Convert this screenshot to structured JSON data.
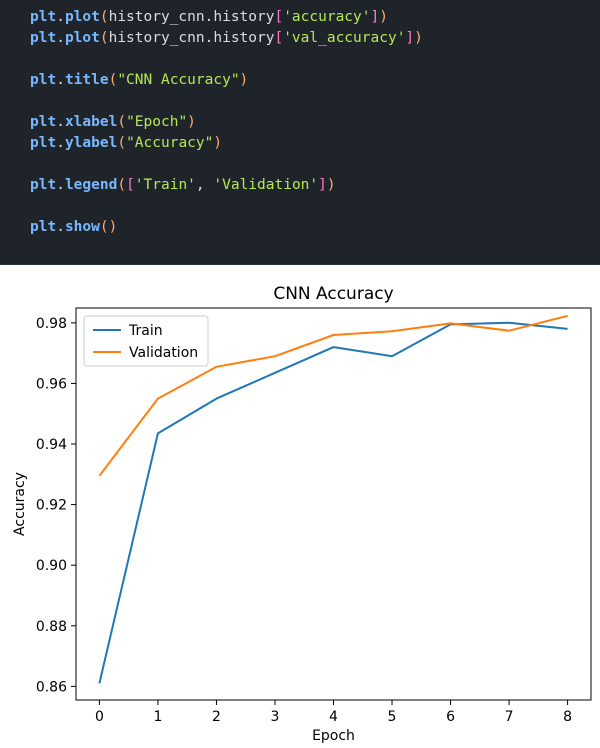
{
  "code_cell": {
    "lines": [
      [
        {
          "t": "obj",
          "v": "plt"
        },
        {
          "t": "dot",
          "v": "."
        },
        {
          "t": "fn",
          "v": "plot"
        },
        {
          "t": "paren",
          "v": "("
        },
        {
          "t": "attr",
          "v": "history_cnn"
        },
        {
          "t": "dot",
          "v": "."
        },
        {
          "t": "attr",
          "v": "history"
        },
        {
          "t": "bracket",
          "v": "["
        },
        {
          "t": "str",
          "v": "'accuracy'"
        },
        {
          "t": "bracket",
          "v": "]"
        },
        {
          "t": "paren",
          "v": ")"
        }
      ],
      [
        {
          "t": "obj",
          "v": "plt"
        },
        {
          "t": "dot",
          "v": "."
        },
        {
          "t": "fn",
          "v": "plot"
        },
        {
          "t": "paren",
          "v": "("
        },
        {
          "t": "attr",
          "v": "history_cnn"
        },
        {
          "t": "dot",
          "v": "."
        },
        {
          "t": "attr",
          "v": "history"
        },
        {
          "t": "bracket",
          "v": "["
        },
        {
          "t": "str",
          "v": "'val_accuracy'"
        },
        {
          "t": "bracket",
          "v": "]"
        },
        {
          "t": "paren",
          "v": ")"
        }
      ],
      [],
      [
        {
          "t": "obj",
          "v": "plt"
        },
        {
          "t": "dot",
          "v": "."
        },
        {
          "t": "fn",
          "v": "title"
        },
        {
          "t": "paren",
          "v": "("
        },
        {
          "t": "str",
          "v": "\"CNN Accuracy\""
        },
        {
          "t": "paren",
          "v": ")"
        }
      ],
      [],
      [
        {
          "t": "obj",
          "v": "plt"
        },
        {
          "t": "dot",
          "v": "."
        },
        {
          "t": "fn",
          "v": "xlabel"
        },
        {
          "t": "paren",
          "v": "("
        },
        {
          "t": "str",
          "v": "\"Epoch\""
        },
        {
          "t": "paren",
          "v": ")"
        }
      ],
      [
        {
          "t": "obj",
          "v": "plt"
        },
        {
          "t": "dot",
          "v": "."
        },
        {
          "t": "fn",
          "v": "ylabel"
        },
        {
          "t": "paren",
          "v": "("
        },
        {
          "t": "str",
          "v": "\"Accuracy\""
        },
        {
          "t": "paren",
          "v": ")"
        }
      ],
      [],
      [
        {
          "t": "obj",
          "v": "plt"
        },
        {
          "t": "dot",
          "v": "."
        },
        {
          "t": "fn",
          "v": "legend"
        },
        {
          "t": "paren",
          "v": "("
        },
        {
          "t": "bracket",
          "v": "["
        },
        {
          "t": "str",
          "v": "'Train'"
        },
        {
          "t": "comma",
          "v": ", "
        },
        {
          "t": "str",
          "v": "'Validation'"
        },
        {
          "t": "bracket",
          "v": "]"
        },
        {
          "t": "paren",
          "v": ")"
        }
      ],
      [],
      [
        {
          "t": "obj",
          "v": "plt"
        },
        {
          "t": "dot",
          "v": "."
        },
        {
          "t": "fn",
          "v": "show"
        },
        {
          "t": "paren",
          "v": "()"
        }
      ]
    ]
  },
  "chart_data": {
    "type": "line",
    "title": "CNN Accuracy",
    "xlabel": "Epoch",
    "ylabel": "Accuracy",
    "x": [
      0,
      1,
      2,
      3,
      4,
      5,
      6,
      7,
      8
    ],
    "xticks": [
      "0",
      "1",
      "2",
      "3",
      "4",
      "5",
      "6",
      "7",
      "8"
    ],
    "yticks": [
      "0.86",
      "0.88",
      "0.90",
      "0.92",
      "0.94",
      "0.96",
      "0.98"
    ],
    "xlim": [
      -0.4,
      8.4
    ],
    "ylim": [
      0.8555,
      0.9849
    ],
    "grid": false,
    "legend_position": "upper-left",
    "series": [
      {
        "name": "Train",
        "color": "#1f77b4",
        "values": [
          0.861,
          0.9435,
          0.955,
          0.9635,
          0.972,
          0.969,
          0.9795,
          0.98,
          0.978
        ]
      },
      {
        "name": "Validation",
        "color": "#ff7f0e",
        "values": [
          0.9295,
          0.955,
          0.9655,
          0.969,
          0.976,
          0.9772,
          0.9798,
          0.9774,
          0.9823
        ]
      }
    ]
  }
}
